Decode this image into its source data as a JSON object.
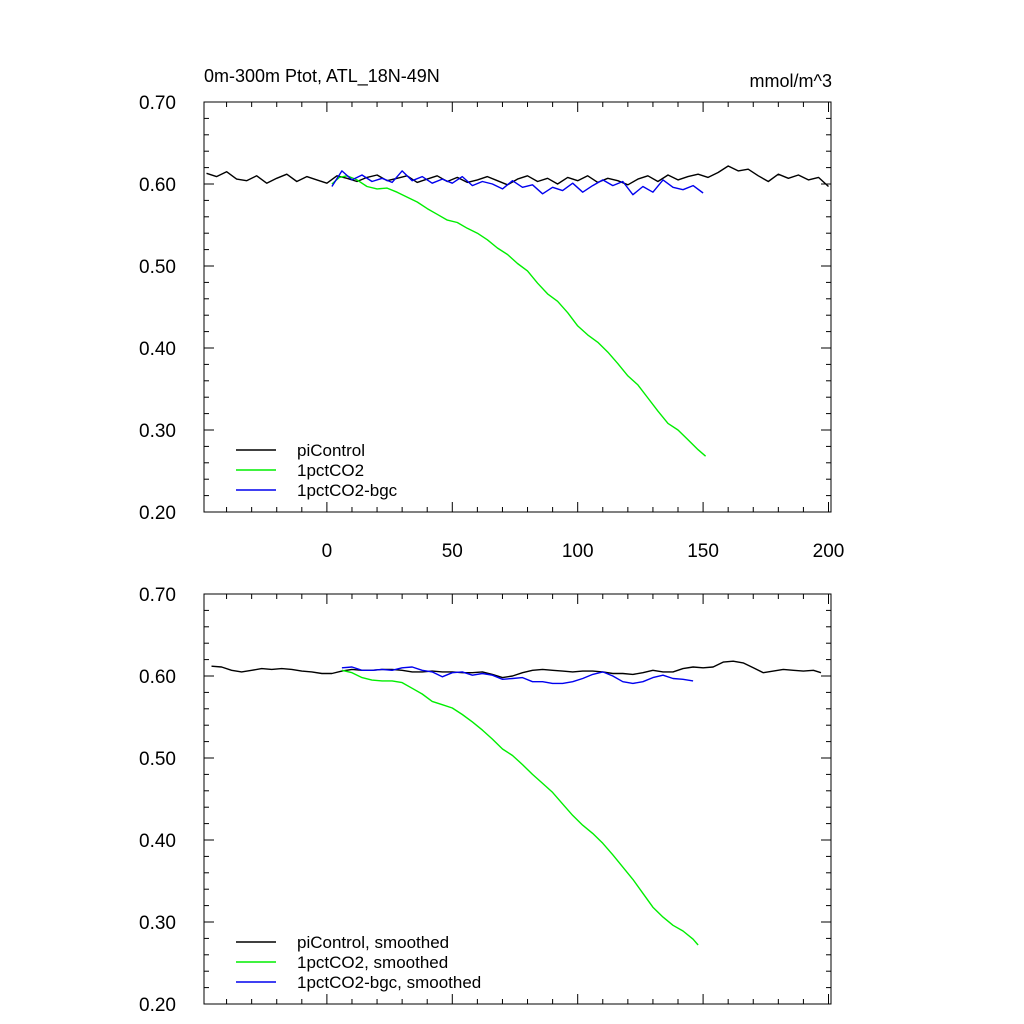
{
  "chart_data": [
    {
      "type": "line",
      "title": "0m-300m Ptot, ATL_18N-49N",
      "units": "mmol/m^3",
      "xlim": [
        -49,
        201
      ],
      "ylim": [
        0.2,
        0.7
      ],
      "yticks": [
        "0.20",
        "0.30",
        "0.40",
        "0.50",
        "0.60",
        "0.70"
      ],
      "xticks": [
        "0",
        "50",
        "100",
        "150",
        "200"
      ],
      "xtick_values": [
        0,
        50,
        100,
        150,
        200
      ],
      "legend_position": "bottom-left",
      "series": [
        {
          "name": "piControl",
          "color": "#000000",
          "x": [
            -48,
            -44,
            -40,
            -36,
            -32,
            -28,
            -24,
            -20,
            -16,
            -12,
            -8,
            -4,
            0,
            4,
            8,
            12,
            16,
            20,
            24,
            28,
            32,
            36,
            40,
            44,
            48,
            52,
            56,
            60,
            64,
            68,
            72,
            76,
            80,
            84,
            88,
            92,
            96,
            100,
            104,
            108,
            112,
            116,
            120,
            124,
            128,
            132,
            136,
            140,
            144,
            148,
            152,
            156,
            160,
            164,
            168,
            172,
            176,
            180,
            184,
            188,
            192,
            196,
            200
          ],
          "y": [
            0.613,
            0.609,
            0.615,
            0.606,
            0.604,
            0.61,
            0.601,
            0.607,
            0.612,
            0.603,
            0.609,
            0.605,
            0.601,
            0.61,
            0.607,
            0.603,
            0.608,
            0.611,
            0.604,
            0.607,
            0.61,
            0.602,
            0.606,
            0.61,
            0.603,
            0.608,
            0.602,
            0.605,
            0.609,
            0.604,
            0.599,
            0.606,
            0.61,
            0.603,
            0.607,
            0.6,
            0.608,
            0.604,
            0.61,
            0.602,
            0.607,
            0.604,
            0.599,
            0.606,
            0.61,
            0.603,
            0.611,
            0.605,
            0.609,
            0.612,
            0.608,
            0.614,
            0.622,
            0.616,
            0.618,
            0.61,
            0.603,
            0.612,
            0.607,
            0.611,
            0.605,
            0.608,
            0.597
          ]
        },
        {
          "name": "1pctCO2",
          "color": "#00ee00",
          "x": [
            2,
            5,
            8,
            12,
            16,
            20,
            24,
            28,
            32,
            36,
            40,
            44,
            48,
            52,
            56,
            60,
            64,
            68,
            72,
            76,
            80,
            84,
            88,
            92,
            96,
            100,
            104,
            108,
            112,
            116,
            120,
            124,
            128,
            132,
            136,
            140,
            144,
            148,
            151
          ],
          "y": [
            0.6,
            0.608,
            0.61,
            0.605,
            0.597,
            0.594,
            0.595,
            0.59,
            0.584,
            0.578,
            0.57,
            0.563,
            0.556,
            0.553,
            0.546,
            0.54,
            0.532,
            0.522,
            0.514,
            0.503,
            0.494,
            0.479,
            0.466,
            0.457,
            0.443,
            0.427,
            0.416,
            0.407,
            0.395,
            0.381,
            0.366,
            0.355,
            0.339,
            0.323,
            0.308,
            0.3,
            0.288,
            0.276,
            0.268
          ]
        },
        {
          "name": "1pctCO2-bgc",
          "color": "#0000ee",
          "x": [
            2,
            6,
            10,
            14,
            18,
            22,
            26,
            30,
            34,
            38,
            42,
            46,
            50,
            54,
            58,
            62,
            66,
            70,
            74,
            78,
            82,
            86,
            90,
            94,
            98,
            102,
            106,
            110,
            114,
            118,
            122,
            126,
            130,
            134,
            138,
            142,
            146,
            150
          ],
          "y": [
            0.597,
            0.616,
            0.605,
            0.611,
            0.603,
            0.607,
            0.602,
            0.616,
            0.604,
            0.609,
            0.601,
            0.606,
            0.601,
            0.609,
            0.598,
            0.603,
            0.6,
            0.594,
            0.604,
            0.596,
            0.599,
            0.588,
            0.596,
            0.592,
            0.601,
            0.59,
            0.598,
            0.605,
            0.598,
            0.603,
            0.587,
            0.597,
            0.59,
            0.605,
            0.596,
            0.593,
            0.598,
            0.589
          ]
        }
      ]
    },
    {
      "type": "line",
      "title": "",
      "xlim": [
        -49,
        201
      ],
      "ylim": [
        0.2,
        0.7
      ],
      "yticks": [
        "0.20",
        "0.30",
        "0.40",
        "0.50",
        "0.60",
        "0.70"
      ],
      "xtick_values": [
        0,
        50,
        100,
        150,
        200
      ],
      "legend_position": "bottom-left",
      "series": [
        {
          "name": "piControl, smoothed",
          "color": "#000000",
          "x": [
            -46,
            -42,
            -38,
            -34,
            -30,
            -26,
            -22,
            -18,
            -14,
            -10,
            -6,
            -2,
            2,
            6,
            10,
            14,
            18,
            22,
            26,
            30,
            34,
            38,
            42,
            46,
            50,
            54,
            58,
            62,
            66,
            70,
            74,
            78,
            82,
            86,
            90,
            94,
            98,
            102,
            106,
            110,
            114,
            118,
            122,
            126,
            130,
            134,
            138,
            142,
            146,
            150,
            154,
            158,
            162,
            166,
            170,
            174,
            178,
            182,
            186,
            190,
            194,
            197
          ],
          "y": [
            0.612,
            0.611,
            0.607,
            0.605,
            0.607,
            0.609,
            0.608,
            0.609,
            0.608,
            0.606,
            0.605,
            0.603,
            0.603,
            0.606,
            0.608,
            0.607,
            0.607,
            0.608,
            0.608,
            0.607,
            0.605,
            0.605,
            0.606,
            0.605,
            0.605,
            0.604,
            0.604,
            0.605,
            0.602,
            0.598,
            0.6,
            0.604,
            0.607,
            0.608,
            0.607,
            0.606,
            0.605,
            0.606,
            0.606,
            0.605,
            0.603,
            0.603,
            0.602,
            0.604,
            0.607,
            0.605,
            0.605,
            0.609,
            0.611,
            0.61,
            0.611,
            0.617,
            0.618,
            0.616,
            0.61,
            0.604,
            0.606,
            0.608,
            0.607,
            0.606,
            0.607,
            0.604
          ]
        },
        {
          "name": "1pctCO2, smoothed",
          "color": "#00ee00",
          "x": [
            6,
            10,
            14,
            18,
            22,
            26,
            30,
            34,
            38,
            42,
            46,
            50,
            54,
            58,
            62,
            66,
            70,
            74,
            78,
            82,
            86,
            90,
            94,
            98,
            102,
            106,
            110,
            114,
            118,
            122,
            126,
            130,
            134,
            138,
            142,
            146,
            148
          ],
          "y": [
            0.607,
            0.604,
            0.598,
            0.595,
            0.594,
            0.594,
            0.592,
            0.585,
            0.578,
            0.569,
            0.565,
            0.561,
            0.553,
            0.544,
            0.534,
            0.523,
            0.511,
            0.503,
            0.492,
            0.48,
            0.469,
            0.458,
            0.444,
            0.43,
            0.418,
            0.408,
            0.396,
            0.382,
            0.367,
            0.352,
            0.335,
            0.318,
            0.306,
            0.296,
            0.289,
            0.279,
            0.272
          ]
        },
        {
          "name": "1pctCO2-bgc, smoothed",
          "color": "#0000ee",
          "x": [
            6,
            10,
            14,
            18,
            22,
            26,
            30,
            34,
            38,
            42,
            46,
            50,
            54,
            58,
            62,
            66,
            70,
            74,
            78,
            82,
            86,
            90,
            94,
            98,
            102,
            106,
            110,
            114,
            118,
            122,
            126,
            130,
            134,
            138,
            142,
            146
          ],
          "y": [
            0.61,
            0.611,
            0.607,
            0.607,
            0.608,
            0.607,
            0.61,
            0.611,
            0.607,
            0.605,
            0.599,
            0.604,
            0.605,
            0.601,
            0.603,
            0.601,
            0.596,
            0.597,
            0.598,
            0.593,
            0.593,
            0.591,
            0.591,
            0.593,
            0.597,
            0.602,
            0.605,
            0.6,
            0.593,
            0.591,
            0.593,
            0.598,
            0.601,
            0.597,
            0.596,
            0.594
          ]
        }
      ]
    }
  ],
  "legend_top": [
    "piControl",
    "1pctCO2",
    "1pctCO2-bgc"
  ],
  "legend_bottom": [
    "piControl, smoothed",
    "1pctCO2, smoothed",
    "1pctCO2-bgc, smoothed"
  ]
}
